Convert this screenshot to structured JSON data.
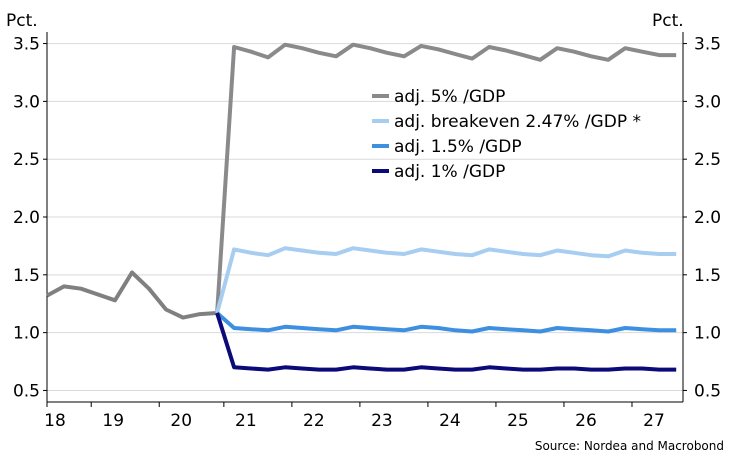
{
  "chart_data": {
    "type": "line",
    "ylabel_left": "Pct.",
    "ylabel_right": "Pct.",
    "ylim": [
      0.4,
      3.6
    ],
    "yticks": [
      "0.5",
      "1.0",
      "1.5",
      "2.0",
      "2.5",
      "3.0",
      "3.5"
    ],
    "xlim": [
      2018.0,
      2027.35
    ],
    "xticks": [
      {
        "label": "18",
        "value": 2018.0
      },
      {
        "label": "19",
        "value": 2018.65
      },
      {
        "label": "20",
        "value": 2019.65
      },
      {
        "label": "21",
        "value": 2020.6
      },
      {
        "label": "22",
        "value": 2021.6
      },
      {
        "label": "23",
        "value": 2022.6
      },
      {
        "label": "24",
        "value": 2023.6
      },
      {
        "label": "25",
        "value": 2024.6
      },
      {
        "label": "26",
        "value": 2025.6
      },
      {
        "label": "27",
        "value": 2026.6
      }
    ],
    "grid": "horizontal",
    "legend_position": "upper-middle",
    "source": "Source: Nordea and Macrobond",
    "history": {
      "color": "#808080",
      "x": [
        2018.0,
        2018.25,
        2018.5,
        2018.75,
        2019.0,
        2019.25,
        2019.5,
        2019.75,
        2020.0,
        2020.25,
        2020.5
      ],
      "values": [
        1.32,
        1.4,
        1.38,
        1.33,
        1.28,
        1.52,
        1.38,
        1.2,
        1.13,
        1.16,
        1.17
      ]
    },
    "series": [
      {
        "name": "adj. 5% /GDP",
        "color": "#8a8a8c",
        "x": [
          2020.5,
          2020.75,
          2021.0,
          2021.25,
          2021.5,
          2021.75,
          2022.0,
          2022.25,
          2022.5,
          2022.75,
          2023.0,
          2023.25,
          2023.5,
          2023.75,
          2024.0,
          2024.25,
          2024.5,
          2024.75,
          2025.0,
          2025.25,
          2025.5,
          2025.75,
          2026.0,
          2026.25,
          2026.5,
          2026.75,
          2027.0,
          2027.25
        ],
        "values": [
          1.17,
          3.47,
          3.43,
          3.38,
          3.49,
          3.46,
          3.42,
          3.39,
          3.49,
          3.46,
          3.42,
          3.39,
          3.48,
          3.45,
          3.41,
          3.37,
          3.47,
          3.44,
          3.4,
          3.36,
          3.46,
          3.43,
          3.39,
          3.36,
          3.46,
          3.43,
          3.4,
          3.4
        ]
      },
      {
        "name": "adj. breakeven 2.47% /GDP *",
        "color": "#a7cdf0",
        "x": [
          2020.5,
          2020.75,
          2021.0,
          2021.25,
          2021.5,
          2021.75,
          2022.0,
          2022.25,
          2022.5,
          2022.75,
          2023.0,
          2023.25,
          2023.5,
          2023.75,
          2024.0,
          2024.25,
          2024.5,
          2024.75,
          2025.0,
          2025.25,
          2025.5,
          2025.75,
          2026.0,
          2026.25,
          2026.5,
          2026.75,
          2027.0,
          2027.25
        ],
        "values": [
          1.17,
          1.72,
          1.69,
          1.67,
          1.73,
          1.71,
          1.69,
          1.68,
          1.73,
          1.71,
          1.69,
          1.68,
          1.72,
          1.7,
          1.68,
          1.67,
          1.72,
          1.7,
          1.68,
          1.67,
          1.71,
          1.69,
          1.67,
          1.66,
          1.71,
          1.69,
          1.68,
          1.68
        ]
      },
      {
        "name": "adj. 1.5% /GDP",
        "color": "#3d8fe0",
        "x": [
          2020.5,
          2020.75,
          2021.0,
          2021.25,
          2021.5,
          2021.75,
          2022.0,
          2022.25,
          2022.5,
          2022.75,
          2023.0,
          2023.25,
          2023.5,
          2023.75,
          2024.0,
          2024.25,
          2024.5,
          2024.75,
          2025.0,
          2025.25,
          2025.5,
          2025.75,
          2026.0,
          2026.25,
          2026.5,
          2026.75,
          2027.0,
          2027.25
        ],
        "values": [
          1.17,
          1.04,
          1.03,
          1.02,
          1.05,
          1.04,
          1.03,
          1.02,
          1.05,
          1.04,
          1.03,
          1.02,
          1.05,
          1.04,
          1.02,
          1.01,
          1.04,
          1.03,
          1.02,
          1.01,
          1.04,
          1.03,
          1.02,
          1.01,
          1.04,
          1.03,
          1.02,
          1.02
        ]
      },
      {
        "name": "adj. 1% /GDP",
        "color": "#0b0a78",
        "x": [
          2020.5,
          2020.75,
          2021.0,
          2021.25,
          2021.5,
          2021.75,
          2022.0,
          2022.25,
          2022.5,
          2022.75,
          2023.0,
          2023.25,
          2023.5,
          2023.75,
          2024.0,
          2024.25,
          2024.5,
          2024.75,
          2025.0,
          2025.25,
          2025.5,
          2025.75,
          2026.0,
          2026.25,
          2026.5,
          2026.75,
          2027.0,
          2027.25
        ],
        "values": [
          1.17,
          0.7,
          0.69,
          0.68,
          0.7,
          0.69,
          0.68,
          0.68,
          0.7,
          0.69,
          0.68,
          0.68,
          0.7,
          0.69,
          0.68,
          0.68,
          0.7,
          0.69,
          0.68,
          0.68,
          0.69,
          0.69,
          0.68,
          0.68,
          0.69,
          0.69,
          0.68,
          0.68
        ]
      }
    ]
  }
}
